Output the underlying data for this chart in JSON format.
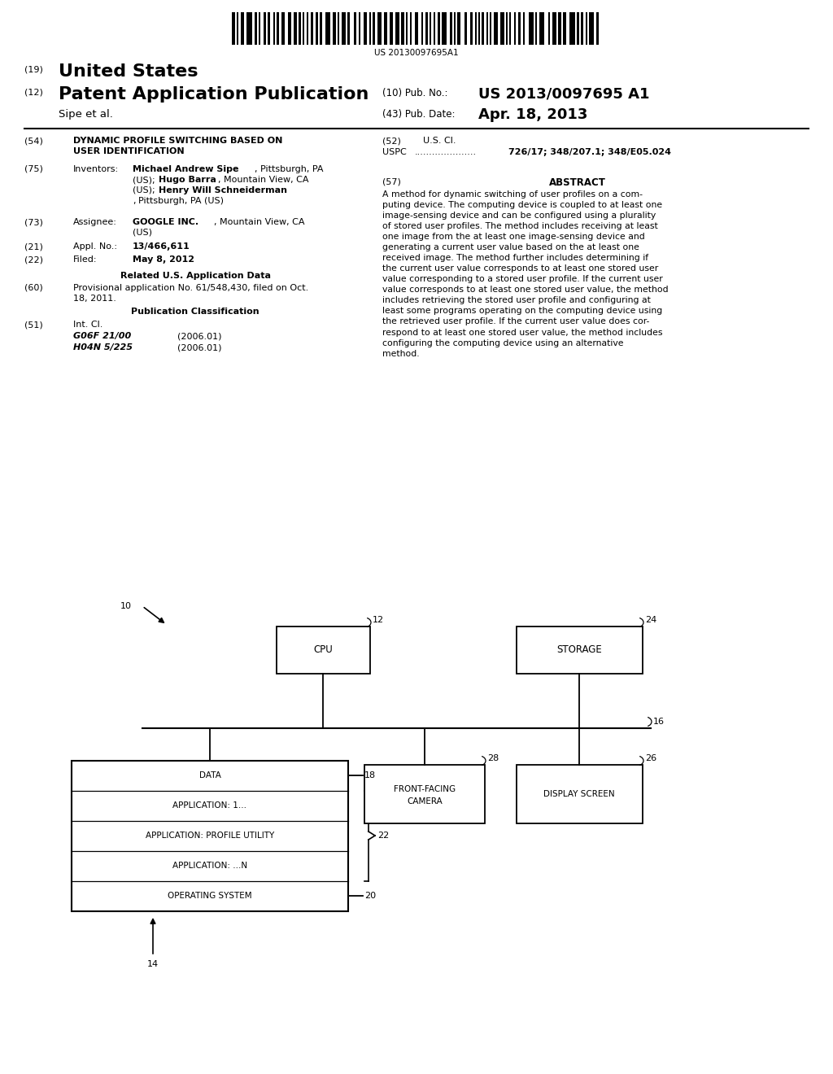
{
  "bg_color": "#ffffff",
  "barcode_text": "US 20130097695A1",
  "header": {
    "number_19": "(19)",
    "united_states": "United States",
    "number_12": "(12)",
    "patent_app_pub": "Patent Application Publication",
    "assignee_line": "Sipe et al.",
    "pub_no_label": "(10) Pub. No.:",
    "pub_no_value": "US 2013/0097695 A1",
    "pub_date_label": "(43) Pub. Date:",
    "pub_date_value": "Apr. 18, 2013"
  },
  "abstract_text": "A method for dynamic switching of user profiles on a com-\nputing device. The computing device is coupled to at least one\nimage-sensing device and can be configured using a plurality\nof stored user profiles. The method includes receiving at least\none image from the at least one image-sensing device and\ngenerating a current user value based on the at least one\nreceived image. The method further includes determining if\nthe current user value corresponds to at least one stored user\nvalue corresponding to a stored user profile. If the current user\nvalue corresponds to at least one stored user value, the method\nincludes retrieving the stored user profile and configuring at\nleast some programs operating on the computing device using\nthe retrieved user profile. If the current user value does cor-\nrespond to at least one stored user value, the method includes\nconfiguring the computing device using an alternative\nmethod."
}
